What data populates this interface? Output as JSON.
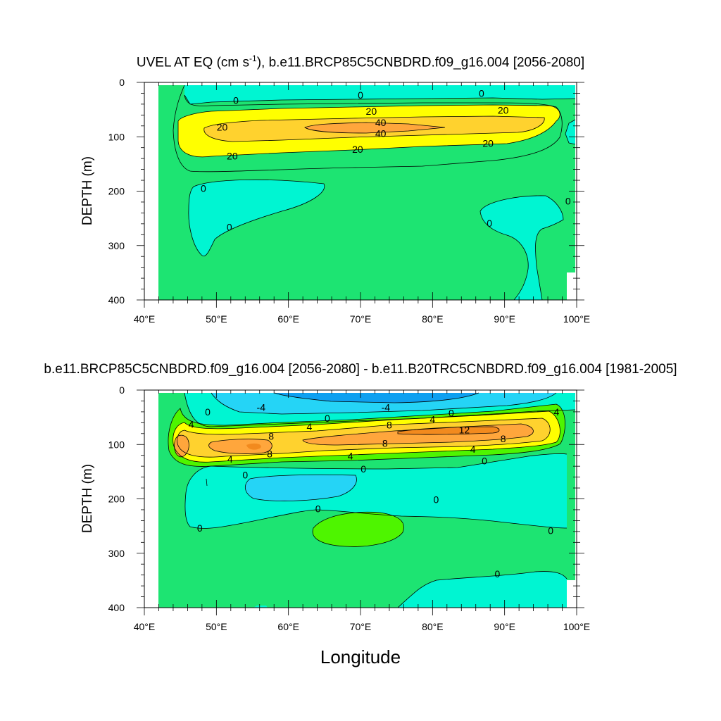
{
  "colors": {
    "c_neg8": "#0ea0f0",
    "c_neg4": "#25d4f6",
    "c_0": "#0ef5f0",
    "c_low": "#00f5d2",
    "c_mid": "#1de472",
    "c_pos4": "#4ef500",
    "c_pos8": "#ffff00",
    "c_pos12": "#ffd22e",
    "c_pos16": "#ffa63c",
    "c_pos20": "#f28a1e",
    "line": "#000000"
  },
  "chart_data": [
    {
      "type": "contour",
      "title": "UVEL AT EQ (cm s⁻¹), b.e11.BRCP85C5CNBDRD.f09_g16.004 [2056-2080]",
      "ylabel": "DEPTH (m)",
      "xlabel": "",
      "x_ticks": [
        "40°E",
        "50°E",
        "60°E",
        "70°E",
        "80°E",
        "90°E",
        "100°E"
      ],
      "y_ticks": [
        "0",
        "100",
        "200",
        "300",
        "400"
      ],
      "xlim": [
        40,
        100
      ],
      "ylim": [
        400,
        0
      ],
      "contour_labels": [
        {
          "text": "0",
          "lon": 52.7,
          "depth": 33
        },
        {
          "text": "0",
          "lon": 70.0,
          "depth": 23
        },
        {
          "text": "0",
          "lon": 86.8,
          "depth": 20
        },
        {
          "text": "20",
          "lon": 71.5,
          "depth": 53
        },
        {
          "text": "20",
          "lon": 89.8,
          "depth": 51
        },
        {
          "text": "40",
          "lon": 72.8,
          "depth": 74
        },
        {
          "text": "40",
          "lon": 72.8,
          "depth": 94
        },
        {
          "text": "20",
          "lon": 50.8,
          "depth": 82
        },
        {
          "text": "20",
          "lon": 69.6,
          "depth": 123
        },
        {
          "text": "20",
          "lon": 87.7,
          "depth": 112
        },
        {
          "text": "20",
          "lon": 52.2,
          "depth": 135
        },
        {
          "text": "0",
          "lon": 48.2,
          "depth": 195
        },
        {
          "text": "0",
          "lon": 51.8,
          "depth": 266
        },
        {
          "text": "0",
          "lon": 87.9,
          "depth": 259
        },
        {
          "text": "0",
          "lon": 98.8,
          "depth": 218
        }
      ]
    },
    {
      "type": "contour",
      "title": "b.e11.BRCP85C5CNBDRD.f09_g16.004 [2056-2080] - b.e11.B20TRC5CNBDRD.f09_g16.004 [1981-2005]",
      "ylabel": "DEPTH (m)",
      "xlabel": "Longitude",
      "x_ticks": [
        "40°E",
        "50°E",
        "60°E",
        "70°E",
        "80°E",
        "90°E",
        "100°E"
      ],
      "y_ticks": [
        "0",
        "100",
        "200",
        "300",
        "400"
      ],
      "xlim": [
        40,
        100
      ],
      "ylim": [
        400,
        0
      ],
      "contour_labels": [
        {
          "text": "0",
          "lon": 48.8,
          "depth": 40
        },
        {
          "text": "-4",
          "lon": 56.2,
          "depth": 32
        },
        {
          "text": "-4",
          "lon": 73.5,
          "depth": 32
        },
        {
          "text": "0",
          "lon": 65.4,
          "depth": 52
        },
        {
          "text": "0",
          "lon": 82.6,
          "depth": 42
        },
        {
          "text": "4",
          "lon": 46.5,
          "depth": 63
        },
        {
          "text": "4",
          "lon": 62.9,
          "depth": 67
        },
        {
          "text": "4",
          "lon": 80.0,
          "depth": 54
        },
        {
          "text": "4",
          "lon": 97.2,
          "depth": 40
        },
        {
          "text": "8",
          "lon": 74.0,
          "depth": 64
        },
        {
          "text": "8",
          "lon": 57.6,
          "depth": 85
        },
        {
          "text": "8",
          "lon": 73.4,
          "depth": 98
        },
        {
          "text": "8",
          "lon": 89.8,
          "depth": 89
        },
        {
          "text": "12",
          "lon": 84.4,
          "depth": 73
        },
        {
          "text": "8",
          "lon": 57.4,
          "depth": 117
        },
        {
          "text": "4",
          "lon": 51.9,
          "depth": 127
        },
        {
          "text": "4",
          "lon": 68.6,
          "depth": 121
        },
        {
          "text": "4",
          "lon": 85.6,
          "depth": 109
        },
        {
          "text": "0",
          "lon": 54.0,
          "depth": 156
        },
        {
          "text": "0",
          "lon": 70.4,
          "depth": 145
        },
        {
          "text": "0",
          "lon": 87.2,
          "depth": 130
        },
        {
          "text": "0",
          "lon": 64.1,
          "depth": 218
        },
        {
          "text": "0",
          "lon": 80.5,
          "depth": 201
        },
        {
          "text": "0",
          "lon": 47.7,
          "depth": 254
        },
        {
          "text": "0",
          "lon": 96.4,
          "depth": 258
        },
        {
          "text": "0",
          "lon": 89.0,
          "depth": 338
        }
      ]
    }
  ]
}
